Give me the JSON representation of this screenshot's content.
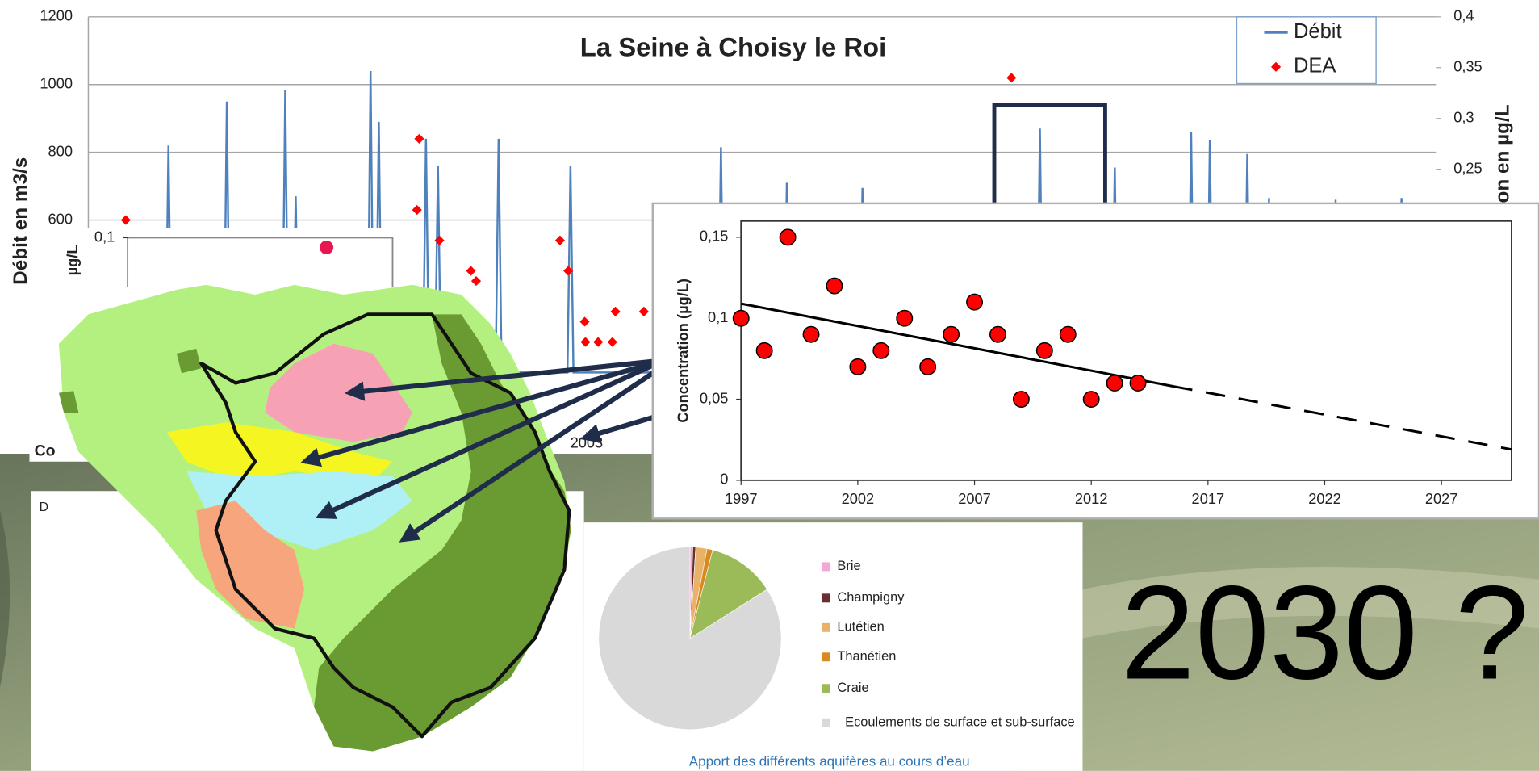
{
  "chart_data": [
    {
      "type": "line",
      "title": "La Seine à Choisy le Roi",
      "y_label": "Débit en m3/s",
      "y2_label": "Concentration en µg/L",
      "xlim": [
        1997,
        2015
      ],
      "ylim": [
        0,
        1200
      ],
      "yticks": [
        600,
        800,
        1000,
        1200
      ],
      "y2lim": [
        0,
        0.4
      ],
      "y2ticks": [
        {
          "value": 0.25,
          "label": "0,25"
        },
        {
          "value": 0.3,
          "label": "0,3"
        },
        {
          "value": 0.35,
          "label": "0,35"
        },
        {
          "value": 0.4,
          "label": "0,4"
        }
      ],
      "grid": true,
      "legend": "top-right",
      "series": [
        {
          "name": "Débit",
          "color": "#4f81bd",
          "x": [
            1997,
            1998.03,
            1998.07,
            1998.11,
            1998.81,
            1998.85,
            1998.89,
            1999.59,
            1999.63,
            1999.67,
            1999.73,
            1999.77,
            1999.81,
            2000.73,
            2000.77,
            2000.81,
            2000.84,
            2000.88,
            2000.92,
            2001.47,
            2001.51,
            2001.55,
            2001.63,
            2001.67,
            2001.71,
            2002.44,
            2002.48,
            2002.52,
            2003.4,
            2003.44,
            2003.48,
            2005.41,
            2005.45,
            2005.49,
            2006.29,
            2006.33,
            2006.37,
            2007.3,
            2007.34,
            2007.38,
            2009.67,
            2009.71,
            2009.75,
            2010.67,
            2010.71,
            2010.75,
            2011.69,
            2011.73,
            2011.77,
            2011.94,
            2011.98,
            2012.02,
            2012.44,
            2012.48,
            2012.52,
            2012.73,
            2012.77,
            2012.81,
            2013.62,
            2013.66,
            2013.7,
            2014.5,
            2014.54,
            2014.58,
            2015
          ],
          "values": [
            150,
            150,
            820,
            150,
            150,
            950,
            150,
            150,
            985,
            150,
            150,
            670,
            150,
            150,
            1040,
            150,
            150,
            890,
            150,
            150,
            840,
            150,
            150,
            760,
            150,
            150,
            840,
            150,
            150,
            760,
            150,
            150,
            815,
            150,
            150,
            710,
            150,
            150,
            695,
            150,
            150,
            870,
            150,
            150,
            755,
            150,
            150,
            860,
            150,
            150,
            835,
            150,
            150,
            795,
            150,
            150,
            665,
            150,
            150,
            660,
            150,
            150,
            665,
            150,
            150
          ]
        },
        {
          "name": "DEA",
          "color": "#ff0000",
          "axis": "y2",
          "marker": "diamond",
          "x": [
            1997.5,
            2001.39,
            2001.42,
            2001.69,
            2002.11,
            2002.18,
            2003.3,
            2003.41,
            2003.63,
            2003.64,
            2003.81,
            2004.0,
            2004.04,
            2004.42,
            2009.33
          ],
          "values": [
            0.2,
            0.21,
            0.28,
            0.18,
            0.15,
            0.14,
            0.18,
            0.15,
            0.1,
            0.08,
            0.08,
            0.08,
            0.11,
            0.11,
            0.34
          ]
        }
      ]
    },
    {
      "type": "scatter",
      "y_label": "Concentration (µg/L)",
      "xlim": [
        1997,
        2030
      ],
      "xticks": [
        1997,
        2002,
        2007,
        2012,
        2017,
        2022,
        2027
      ],
      "ylim": [
        0,
        0.16
      ],
      "yticks": [
        0,
        {
          "value": 0.05,
          "label": "0,05"
        },
        {
          "value": 0.1,
          "label": "0,1"
        },
        {
          "value": 0.15,
          "label": "0,15"
        }
      ],
      "color": "#ff0000",
      "x": [
        1997,
        1998,
        1999,
        2000,
        2001,
        2002,
        2003,
        2004,
        2005,
        2006,
        2007,
        2008,
        2009,
        2010,
        2011,
        2012,
        2013,
        2014
      ],
      "values": [
        0.1,
        0.08,
        0.15,
        0.09,
        0.12,
        0.07,
        0.08,
        0.1,
        0.07,
        0.09,
        0.11,
        0.09,
        0.05,
        0.08,
        0.09,
        0.05,
        0.06,
        0.06
      ],
      "trend": {
        "x": [
          1997,
          2015.5
        ],
        "values": [
          0.109,
          0.058
        ]
      },
      "projection": {
        "x": [
          2015.5,
          2030
        ],
        "values": [
          0.058,
          0.019
        ]
      }
    },
    {
      "type": "pie",
      "caption": "Apport des différents aquifères au cours d’eau",
      "categories": [
        "Brie",
        "Champigny",
        "Lutétien",
        "Thanétien",
        "Craie",
        "Ecoulements de surface et sub-surface"
      ],
      "values": [
        0.5,
        0.5,
        2,
        1,
        12,
        84
      ],
      "colors": [
        "#f4a6d7",
        "#6b2e2e",
        "#e8b26a",
        "#d98a1e",
        "#9bbb59",
        "#d9d9d9"
      ]
    },
    {
      "type": "scatter",
      "y_label": "µg/L",
      "xlim": [
        1997,
        2003.8
      ],
      "xticks": [
        2003
      ],
      "ylim": [
        0,
        0.1
      ],
      "yticks": [
        {
          "value": 0.1,
          "label": "0,1"
        }
      ],
      "color": "#e8174f",
      "x": [
        1999.6
      ],
      "values": [
        0.095
      ]
    }
  ],
  "fragments": {
    "caption_start": "Co",
    "panel_label": "D"
  },
  "slide": {
    "headline": "2030 ?"
  }
}
